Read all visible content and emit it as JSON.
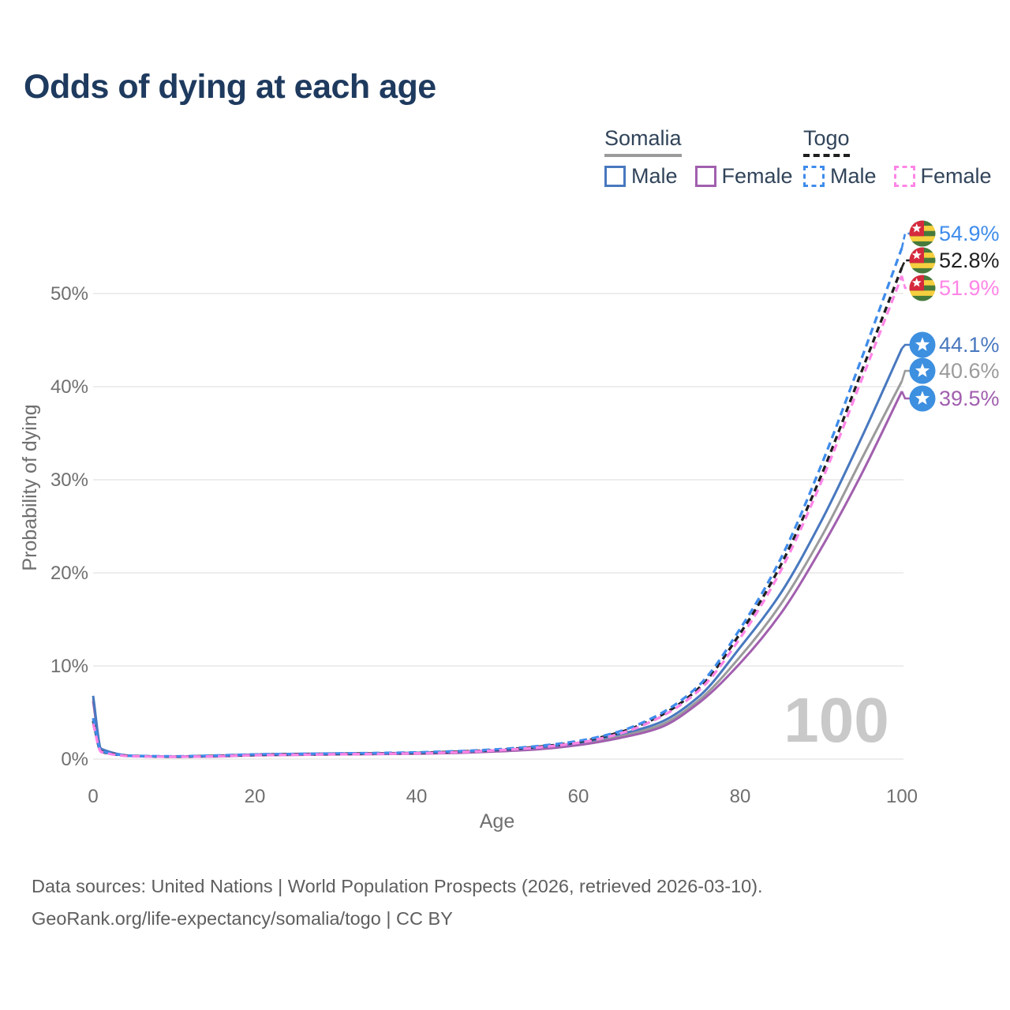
{
  "title": "Odds of dying at each age",
  "watermark_age": "100",
  "legend": {
    "groups": [
      {
        "label": "Somalia",
        "line_style": "solid",
        "underline_color": "#9b9b9b",
        "items": [
          {
            "label": "Male",
            "color": "#4878bf"
          },
          {
            "label": "Female",
            "color": "#a15fae"
          }
        ]
      },
      {
        "label": "Togo",
        "line_style": "dashed",
        "underline_color": "#1f1f1f",
        "items": [
          {
            "label": "Male",
            "color": "#3f8ceb"
          },
          {
            "label": "Female",
            "color": "#ff85e6"
          }
        ]
      }
    ]
  },
  "footer": {
    "line1": "Data sources: United Nations | World Population Prospects (2026, retrieved 2026-03-10).",
    "line2": "GeoRank.org/life-expectancy/somalia/togo | CC BY"
  },
  "flags": {
    "somalia": {
      "background": "#3d8fe0",
      "star": "#ffffff"
    },
    "togo": {
      "green": "#467a3c",
      "yellow": "#f6cf3f",
      "red": "#d5293d",
      "star": "#ffffff"
    }
  },
  "chart_data": {
    "type": "line",
    "title": "Odds of dying at each age",
    "xlabel": "Age",
    "ylabel": "Probability of dying",
    "x_ticks": [
      0,
      20,
      40,
      60,
      80,
      100
    ],
    "y_ticks_percent": [
      0,
      10,
      20,
      30,
      40,
      50
    ],
    "xlim": [
      0,
      100
    ],
    "ylim_percent": [
      0,
      57
    ],
    "grid": "horizontal-only",
    "legend_position": "top-right",
    "ages": [
      0,
      1,
      5,
      10,
      15,
      20,
      25,
      30,
      35,
      40,
      45,
      50,
      55,
      60,
      65,
      70,
      75,
      80,
      85,
      90,
      95,
      100
    ],
    "series": [
      {
        "id": "somalia-male",
        "name": "Somalia Male",
        "country": "Somalia",
        "sex": "Male",
        "line_style": "solid",
        "color": "#4878bf",
        "flag": "somalia",
        "end_label": "44.1%",
        "end_value_percent": 44.1,
        "values_percent": [
          6.8,
          1.1,
          0.35,
          0.28,
          0.35,
          0.5,
          0.55,
          0.6,
          0.62,
          0.68,
          0.78,
          0.95,
          1.25,
          1.75,
          2.65,
          3.9,
          6.8,
          12.0,
          17.8,
          25.5,
          34.5,
          44.1
        ]
      },
      {
        "id": "somalia-both",
        "name": "Somalia Both sexes",
        "country": "Somalia",
        "sex": "Both",
        "line_style": "solid",
        "color": "#9b9b9b",
        "flag": "somalia",
        "end_label": "40.6%",
        "end_value_percent": 40.6,
        "values_percent": [
          6.5,
          1.05,
          0.33,
          0.26,
          0.31,
          0.45,
          0.5,
          0.55,
          0.58,
          0.63,
          0.72,
          0.88,
          1.15,
          1.6,
          2.45,
          3.6,
          6.4,
          11.0,
          16.6,
          23.8,
          32.2,
          40.6
        ]
      },
      {
        "id": "somalia-female",
        "name": "Somalia Female",
        "country": "Somalia",
        "sex": "Female",
        "line_style": "solid",
        "color": "#a15fae",
        "flag": "somalia",
        "end_label": "39.5%",
        "end_value_percent": 39.5,
        "values_percent": [
          6.2,
          1.0,
          0.31,
          0.24,
          0.28,
          0.4,
          0.45,
          0.5,
          0.53,
          0.58,
          0.66,
          0.82,
          1.05,
          1.5,
          2.25,
          3.35,
          6.1,
          10.3,
          15.6,
          22.6,
          30.6,
          39.5
        ]
      },
      {
        "id": "togo-male",
        "name": "Togo Male",
        "country": "Togo",
        "sex": "Male",
        "line_style": "dashed",
        "color": "#3f8ceb",
        "flag": "togo",
        "end_label": "54.9%",
        "end_value_percent": 54.9,
        "values_percent": [
          4.4,
          0.85,
          0.35,
          0.3,
          0.38,
          0.5,
          0.55,
          0.6,
          0.65,
          0.72,
          0.85,
          1.05,
          1.4,
          1.95,
          2.95,
          4.8,
          8.0,
          14.0,
          21.5,
          31.5,
          43.0,
          54.9
        ]
      },
      {
        "id": "togo-both",
        "name": "Togo Both sexes",
        "country": "Togo",
        "sex": "Both",
        "line_style": "dashed",
        "color": "#1f1f1f",
        "flag": "togo",
        "end_label": "52.8%",
        "end_value_percent": 52.8,
        "values_percent": [
          4.1,
          0.8,
          0.33,
          0.27,
          0.34,
          0.46,
          0.51,
          0.56,
          0.6,
          0.67,
          0.8,
          1.0,
          1.32,
          1.85,
          2.85,
          4.6,
          7.7,
          13.5,
          20.8,
          30.4,
          41.6,
          52.8
        ]
      },
      {
        "id": "togo-female",
        "name": "Togo Female",
        "country": "Togo",
        "sex": "Female",
        "line_style": "dashed",
        "color": "#ff85e6",
        "flag": "togo",
        "end_label": "51.9%",
        "end_value_percent": 51.9,
        "values_percent": [
          3.8,
          0.75,
          0.3,
          0.25,
          0.3,
          0.42,
          0.47,
          0.52,
          0.56,
          0.62,
          0.74,
          0.94,
          1.25,
          1.75,
          2.7,
          4.45,
          7.45,
          13.0,
          20.2,
          29.7,
          40.7,
          51.9
        ]
      }
    ],
    "end_label_order_top_to_bottom": [
      "togo-male",
      "togo-both",
      "togo-female",
      "somalia-male",
      "somalia-both",
      "somalia-female"
    ]
  }
}
